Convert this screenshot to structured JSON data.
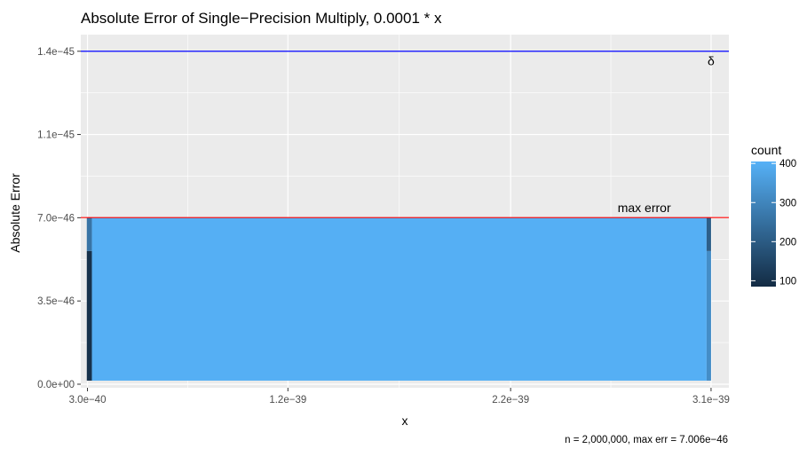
{
  "chart_data": {
    "type": "heatmap",
    "title": "Absolute Error of Single−Precision Multiply, 0.0001 * x",
    "xlabel": "x",
    "ylabel": "Absolute Error",
    "caption": "n = 2,000,000, max err = 7.006e−46",
    "xlim": [
      2.7e-40,
      3.18e-39
    ],
    "ylim": [
      -1.5e-47,
      1.47e-45
    ],
    "x_ticks": [
      {
        "value": 3e-40,
        "label": "3.0e−40"
      },
      {
        "value": 1.2e-39,
        "label": "1.2e−39"
      },
      {
        "value": 2.2e-39,
        "label": "2.2e−39"
      },
      {
        "value": 3.1e-39,
        "label": "3.1e−39"
      }
    ],
    "y_ticks": [
      {
        "value": 0,
        "label": "0.0e+00"
      },
      {
        "value": 3.5e-46,
        "label": "3.5e−46"
      },
      {
        "value": 7e-46,
        "label": "7.0e−46"
      },
      {
        "value": 1.05e-45,
        "label": "1.1e−45"
      },
      {
        "value": 1.4e-45,
        "label": "1.4e−45"
      }
    ],
    "grid": true,
    "reference_lines": [
      {
        "name": "delta",
        "value": 1.4e-45,
        "color": "#0000ff",
        "label": "δ"
      },
      {
        "name": "max-error",
        "value": 7.006e-46,
        "color": "#ff0000",
        "label": "max error"
      }
    ],
    "cells": [
      {
        "x0": 2.97e-40,
        "x1": 3.2e-40,
        "y0": 1.5e-47,
        "y1": 5.6e-46,
        "count": 100
      },
      {
        "x0": 2.97e-40,
        "x1": 3.2e-40,
        "y0": 5.6e-46,
        "y1": 7.006e-46,
        "count": 260
      },
      {
        "x0": 3.2e-40,
        "x1": 3.08e-39,
        "y0": 1.5e-47,
        "y1": 7.006e-46,
        "count": 400
      },
      {
        "x0": 3.08e-39,
        "x1": 3.1e-39,
        "y0": 1.5e-47,
        "y1": 5.6e-46,
        "count": 320
      },
      {
        "x0": 3.08e-39,
        "x1": 3.1e-39,
        "y0": 5.6e-46,
        "y1": 7.006e-46,
        "count": 210
      }
    ],
    "legend": {
      "title": "count",
      "position": "right",
      "range": [
        85,
        405
      ],
      "ticks": [
        100,
        200,
        300,
        400
      ],
      "color_low": "#132b43",
      "color_high": "#56b1f7"
    }
  }
}
